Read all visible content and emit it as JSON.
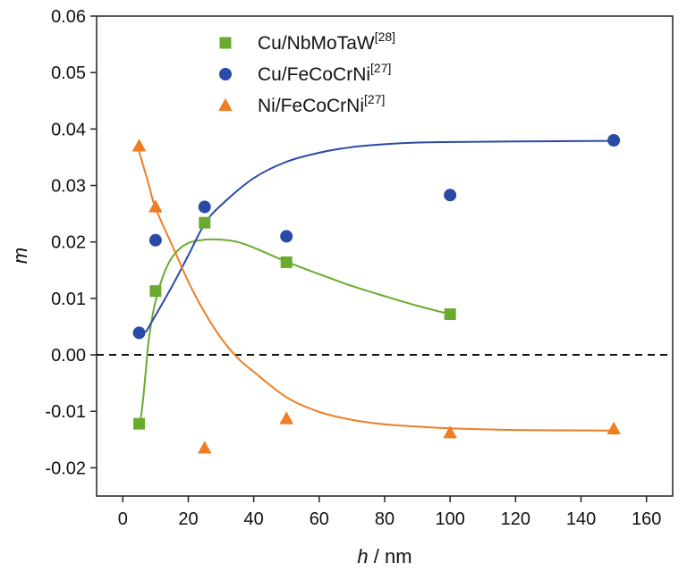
{
  "chart_data": {
    "type": "scatter",
    "title": "",
    "xlabel_italic": "h",
    "xlabel_unit": " / nm",
    "ylabel": "m",
    "xlim": [
      -8,
      168
    ],
    "ylim": [
      -0.025,
      0.06
    ],
    "xticks": [
      0,
      20,
      40,
      60,
      80,
      100,
      120,
      140,
      160
    ],
    "yticks": [
      -0.02,
      -0.01,
      0.0,
      0.01,
      0.02,
      0.03,
      0.04,
      0.05,
      0.06
    ],
    "ytick_labels": [
      "-0.02",
      "-0.01",
      "0.00",
      "0.01",
      "0.02",
      "0.03",
      "0.04",
      "0.05",
      "0.06"
    ],
    "reference_line": {
      "y": 0,
      "style": "dashed"
    },
    "legend_position": "top-center",
    "grid": false,
    "series": [
      {
        "name": "Cu/NbMoTaW",
        "ref": "[28]",
        "marker": "square",
        "color": "#6aab2e",
        "x": [
          5,
          10,
          25,
          50,
          100
        ],
        "y": [
          -0.0122,
          0.0113,
          0.0234,
          0.0164,
          0.0072
        ],
        "fit_x": [
          5,
          6,
          7,
          8,
          10,
          13,
          16,
          20,
          25,
          30,
          35,
          40,
          50,
          60,
          70,
          80,
          90,
          100
        ],
        "fit_y": [
          -0.013,
          -0.009,
          -0.003,
          0.003,
          0.0095,
          0.015,
          0.018,
          0.0198,
          0.0204,
          0.0204,
          0.02,
          0.019,
          0.0165,
          0.0143,
          0.0122,
          0.0104,
          0.0087,
          0.0072
        ]
      },
      {
        "name": "Cu/FeCoCrNi",
        "ref": "[27]",
        "marker": "circle",
        "color": "#2a4aa8",
        "x": [
          5,
          10,
          25,
          50,
          100,
          150
        ],
        "y": [
          0.0039,
          0.0203,
          0.0262,
          0.021,
          0.0283,
          0.038
        ],
        "fit_x": [
          7,
          10,
          15,
          20,
          25,
          30,
          40,
          50,
          60,
          70,
          80,
          90,
          100,
          120,
          150
        ],
        "fit_y": [
          0.004,
          0.007,
          0.0121,
          0.0176,
          0.0232,
          0.0265,
          0.0313,
          0.0342,
          0.0358,
          0.0368,
          0.0373,
          0.0376,
          0.0377,
          0.0378,
          0.0379
        ]
      },
      {
        "name": "Ni/FeCoCrNi",
        "ref": "[27]",
        "marker": "triangle",
        "color": "#ef7d23",
        "x": [
          5,
          10,
          25,
          50,
          100,
          150
        ],
        "y": [
          0.037,
          0.0262,
          -0.0165,
          -0.0113,
          -0.0138,
          -0.0131
        ],
        "fit_x": [
          5,
          8,
          10,
          15,
          20,
          25,
          30,
          35,
          40,
          50,
          60,
          70,
          80,
          90,
          100,
          120,
          150
        ],
        "fit_y": [
          0.036,
          0.03,
          0.026,
          0.0195,
          0.013,
          0.0075,
          0.003,
          -0.0005,
          -0.003,
          -0.0075,
          -0.0101,
          -0.0115,
          -0.0123,
          -0.0127,
          -0.013,
          -0.0133,
          -0.0134
        ]
      }
    ]
  }
}
